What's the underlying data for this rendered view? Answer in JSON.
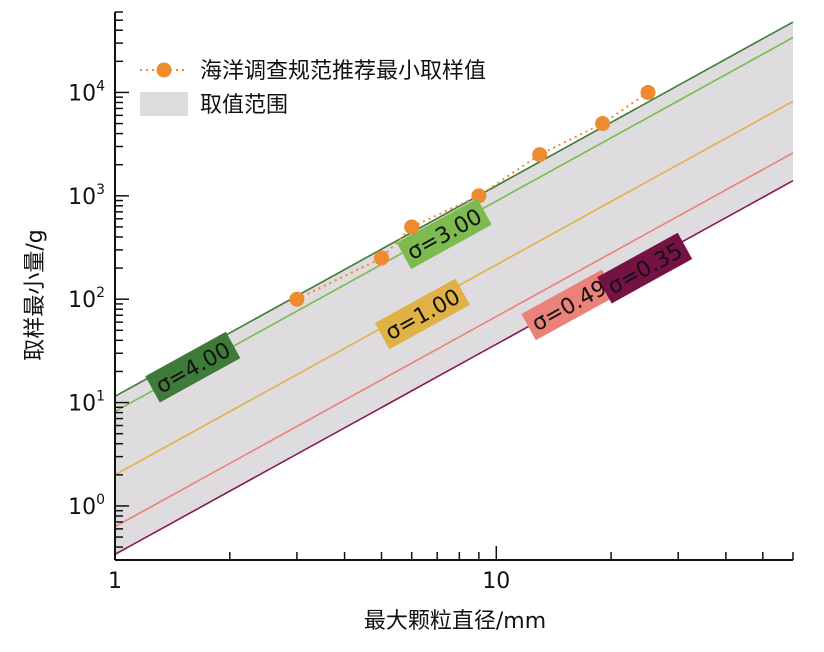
{
  "chart_data": {
    "type": "line",
    "xscale": "log",
    "yscale": "log",
    "xlim": [
      1,
      60
    ],
    "ylim": [
      0.3,
      60000
    ],
    "xlabel": "最大颗粒直径/mm",
    "ylabel": "取样最小量/g",
    "x_ticks": [
      {
        "value": 1,
        "label": "1"
      },
      {
        "value": 10,
        "label": "10"
      }
    ],
    "y_ticks": [
      {
        "value": 1,
        "base": "10",
        "exp": "0"
      },
      {
        "value": 10,
        "base": "10",
        "exp": "1"
      },
      {
        "value": 100,
        "base": "10",
        "exp": "2"
      },
      {
        "value": 1000,
        "base": "10",
        "exp": "3"
      },
      {
        "value": 10000,
        "base": "10",
        "exp": "4"
      }
    ],
    "series": [
      {
        "sigma": 4.0,
        "label": "σ=4.00",
        "color": "#3e7a38",
        "label_bg": "#3e7a38",
        "label_text": "#111111",
        "y_at_1": 11.5,
        "y_at_60": 48000,
        "label_x": 1.6,
        "label_y": 22
      },
      {
        "sigma": 3.0,
        "label": "σ=3.00",
        "color": "#7dbb4e",
        "label_bg": "#7dbb4e",
        "label_text": "#111111",
        "y_at_1": 8.2,
        "y_at_60": 34000,
        "label_x": 7.3,
        "label_y": 430
      },
      {
        "sigma": 1.0,
        "label": "σ=1.00",
        "color": "#e0b245",
        "label_bg": "#e0b245",
        "label_text": "#111111",
        "y_at_1": 2.0,
        "y_at_60": 8200,
        "label_x": 6.4,
        "label_y": 72
      },
      {
        "sigma": 0.49,
        "label": "σ=0.49",
        "color": "#ea8279",
        "label_bg": "#ea8279",
        "label_text": "#111111",
        "y_at_1": 0.63,
        "y_at_60": 2600,
        "label_x": 15.5,
        "label_y": 88
      },
      {
        "sigma": 0.35,
        "label": "σ=0.35",
        "color": "#8a1752",
        "label_bg": "#741244",
        "label_text": "#111111",
        "y_at_1": 0.34,
        "y_at_60": 1400,
        "label_x": 24.5,
        "label_y": 200
      }
    ],
    "range_band": {
      "label": "取值范围",
      "color": "#dedcdf",
      "upper_sigma": 4.0,
      "lower_sigma": 0.35
    },
    "recommended": {
      "label": "海洋调查规范推荐最小取样值",
      "color": "#ef8a2e",
      "points": [
        {
          "x": 3,
          "y": 100
        },
        {
          "x": 5,
          "y": 250
        },
        {
          "x": 6,
          "y": 500
        },
        {
          "x": 9,
          "y": 1000
        },
        {
          "x": 13,
          "y": 2500
        },
        {
          "x": 19,
          "y": 5000
        },
        {
          "x": 25,
          "y": 10000
        }
      ]
    },
    "legend": {
      "position": "top-left"
    },
    "grid": false
  }
}
